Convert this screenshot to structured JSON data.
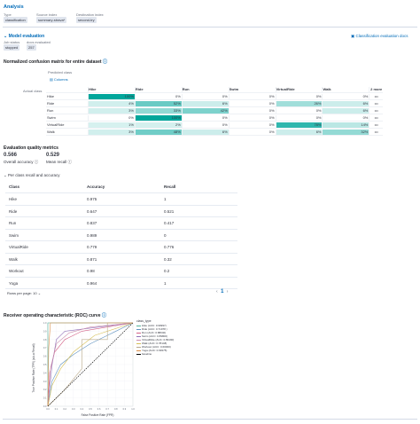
{
  "header": {
    "title": "Analysis",
    "type_label": "Type",
    "type_value": "classification",
    "source_label": "Source index",
    "source_value": "summary-strava*",
    "dest_label": "Destination index",
    "dest_value": "second-try"
  },
  "model_eval": {
    "title": "Model evaluation",
    "docs_link": "Classification evaluation docs",
    "job_status_label": "Job status",
    "job_status_value": "stopped",
    "docs_eval_label": "docs evaluated",
    "docs_eval_value": "257"
  },
  "confusion": {
    "title": "Normalized confusion matrix for entire dataset",
    "predicted_label": "Predicted class",
    "actual_label": "Actual class",
    "columns_button": "Columns",
    "more_label": "2 more",
    "columns": [
      "Hike",
      "Ride",
      "Run",
      "Swim",
      "VirtualRide",
      "Walk"
    ],
    "rows": [
      {
        "label": "Hike",
        "cells": [
          "100%",
          "0%",
          "0%",
          "0%",
          "0%",
          "0%"
        ],
        "shade": [
          1.0,
          0,
          0,
          0,
          0,
          0
        ]
      },
      {
        "label": "Ride",
        "cells": [
          "4%",
          "52%",
          "6%",
          "0%",
          "26%",
          "6%"
        ],
        "shade": [
          0.04,
          0.52,
          0.06,
          0,
          0.26,
          0.06
        ]
      },
      {
        "label": "Run",
        "cells": [
          "3%",
          "33%",
          "42%",
          "0%",
          "0%",
          "6%"
        ],
        "shade": [
          0.03,
          0.33,
          0.42,
          0,
          0,
          0.06
        ]
      },
      {
        "label": "Swim",
        "cells": [
          "0%",
          "100%",
          "0%",
          "0%",
          "0%",
          "0%"
        ],
        "shade": [
          0,
          1.0,
          0,
          0,
          0,
          0
        ]
      },
      {
        "label": "VirtualRide",
        "cells": [
          "1%",
          "2%",
          "0%",
          "0%",
          "78%",
          "14%"
        ],
        "shade": [
          0.01,
          0.02,
          0,
          0,
          0.78,
          0.14
        ]
      },
      {
        "label": "Walk",
        "cells": [
          "3%",
          "48%",
          "6%",
          "0%",
          "6%",
          "32%"
        ],
        "shade": [
          0.03,
          0.48,
          0.06,
          0,
          0.06,
          0.32
        ]
      }
    ]
  },
  "quality": {
    "title": "Evaluation quality metrics",
    "overall_accuracy_value": "0.566",
    "overall_accuracy_label": "Overall accuracy",
    "mean_recall_value": "0.529",
    "mean_recall_label": "Mean recall",
    "per_class_toggle": "Per class recall and accuracy"
  },
  "per_class_table": {
    "headers": [
      "Class",
      "Accuracy",
      "Recall"
    ],
    "rows": [
      [
        "Hike",
        "0.975",
        "1"
      ],
      [
        "Ride",
        "0.647",
        "0.521"
      ],
      [
        "Run",
        "0.837",
        "0.417"
      ],
      [
        "Swim",
        "0.989",
        "0"
      ],
      [
        "VirtualRide",
        "0.779",
        "0.776"
      ],
      [
        "Walk",
        "0.871",
        "0.32"
      ],
      [
        "Workout",
        "0.98",
        "0.2"
      ],
      [
        "Yoga",
        "0.964",
        "1"
      ]
    ],
    "rows_per_page": "Rows per page: 10",
    "page": "1"
  },
  "roc": {
    "title": "Receiver operating characteristic (ROC) curve",
    "legend_title": "class_type",
    "xlabel": "False Positive Rate (FPR)",
    "ylabel": "True Positive Rate (TPR) (a.k.a Recall)",
    "x_ticks": [
      "0.0",
      "0.1",
      "0.2",
      "0.3",
      "0.4",
      "0.5",
      "0.6",
      "0.7",
      "0.8",
      "0.9",
      "1.0"
    ],
    "y_ticks": [
      "0.0",
      "0.1",
      "0.2",
      "0.3",
      "0.4",
      "0.5",
      "0.6",
      "0.7",
      "0.8",
      "0.9",
      "1.0"
    ],
    "legend": [
      {
        "label": "Hike (AUC: 0.99997)",
        "color": "#54b399"
      },
      {
        "label": "Ride (AUC: 0.71978 )",
        "color": "#6092c0"
      },
      {
        "label": "Run (AUC: 0.88040)",
        "color": "#d36086"
      },
      {
        "label": "Swim (AUC: 0.89800)",
        "color": "#9170b8"
      },
      {
        "label": "VirtualRide (AUC: 0.89190)",
        "color": "#ca8eae"
      },
      {
        "label": "Walk (AUC: 0.78148)",
        "color": "#d6bf57"
      },
      {
        "label": "Workout (AUC: 0.60000)",
        "color": "#b9a888"
      },
      {
        "label": "Yoga (AUC: 0.99375)",
        "color": "#da8b45"
      },
      {
        "label": "baseline",
        "color": "#000000"
      }
    ]
  },
  "colors": {
    "accent": "#006bb8",
    "heat": "#00a69b"
  }
}
